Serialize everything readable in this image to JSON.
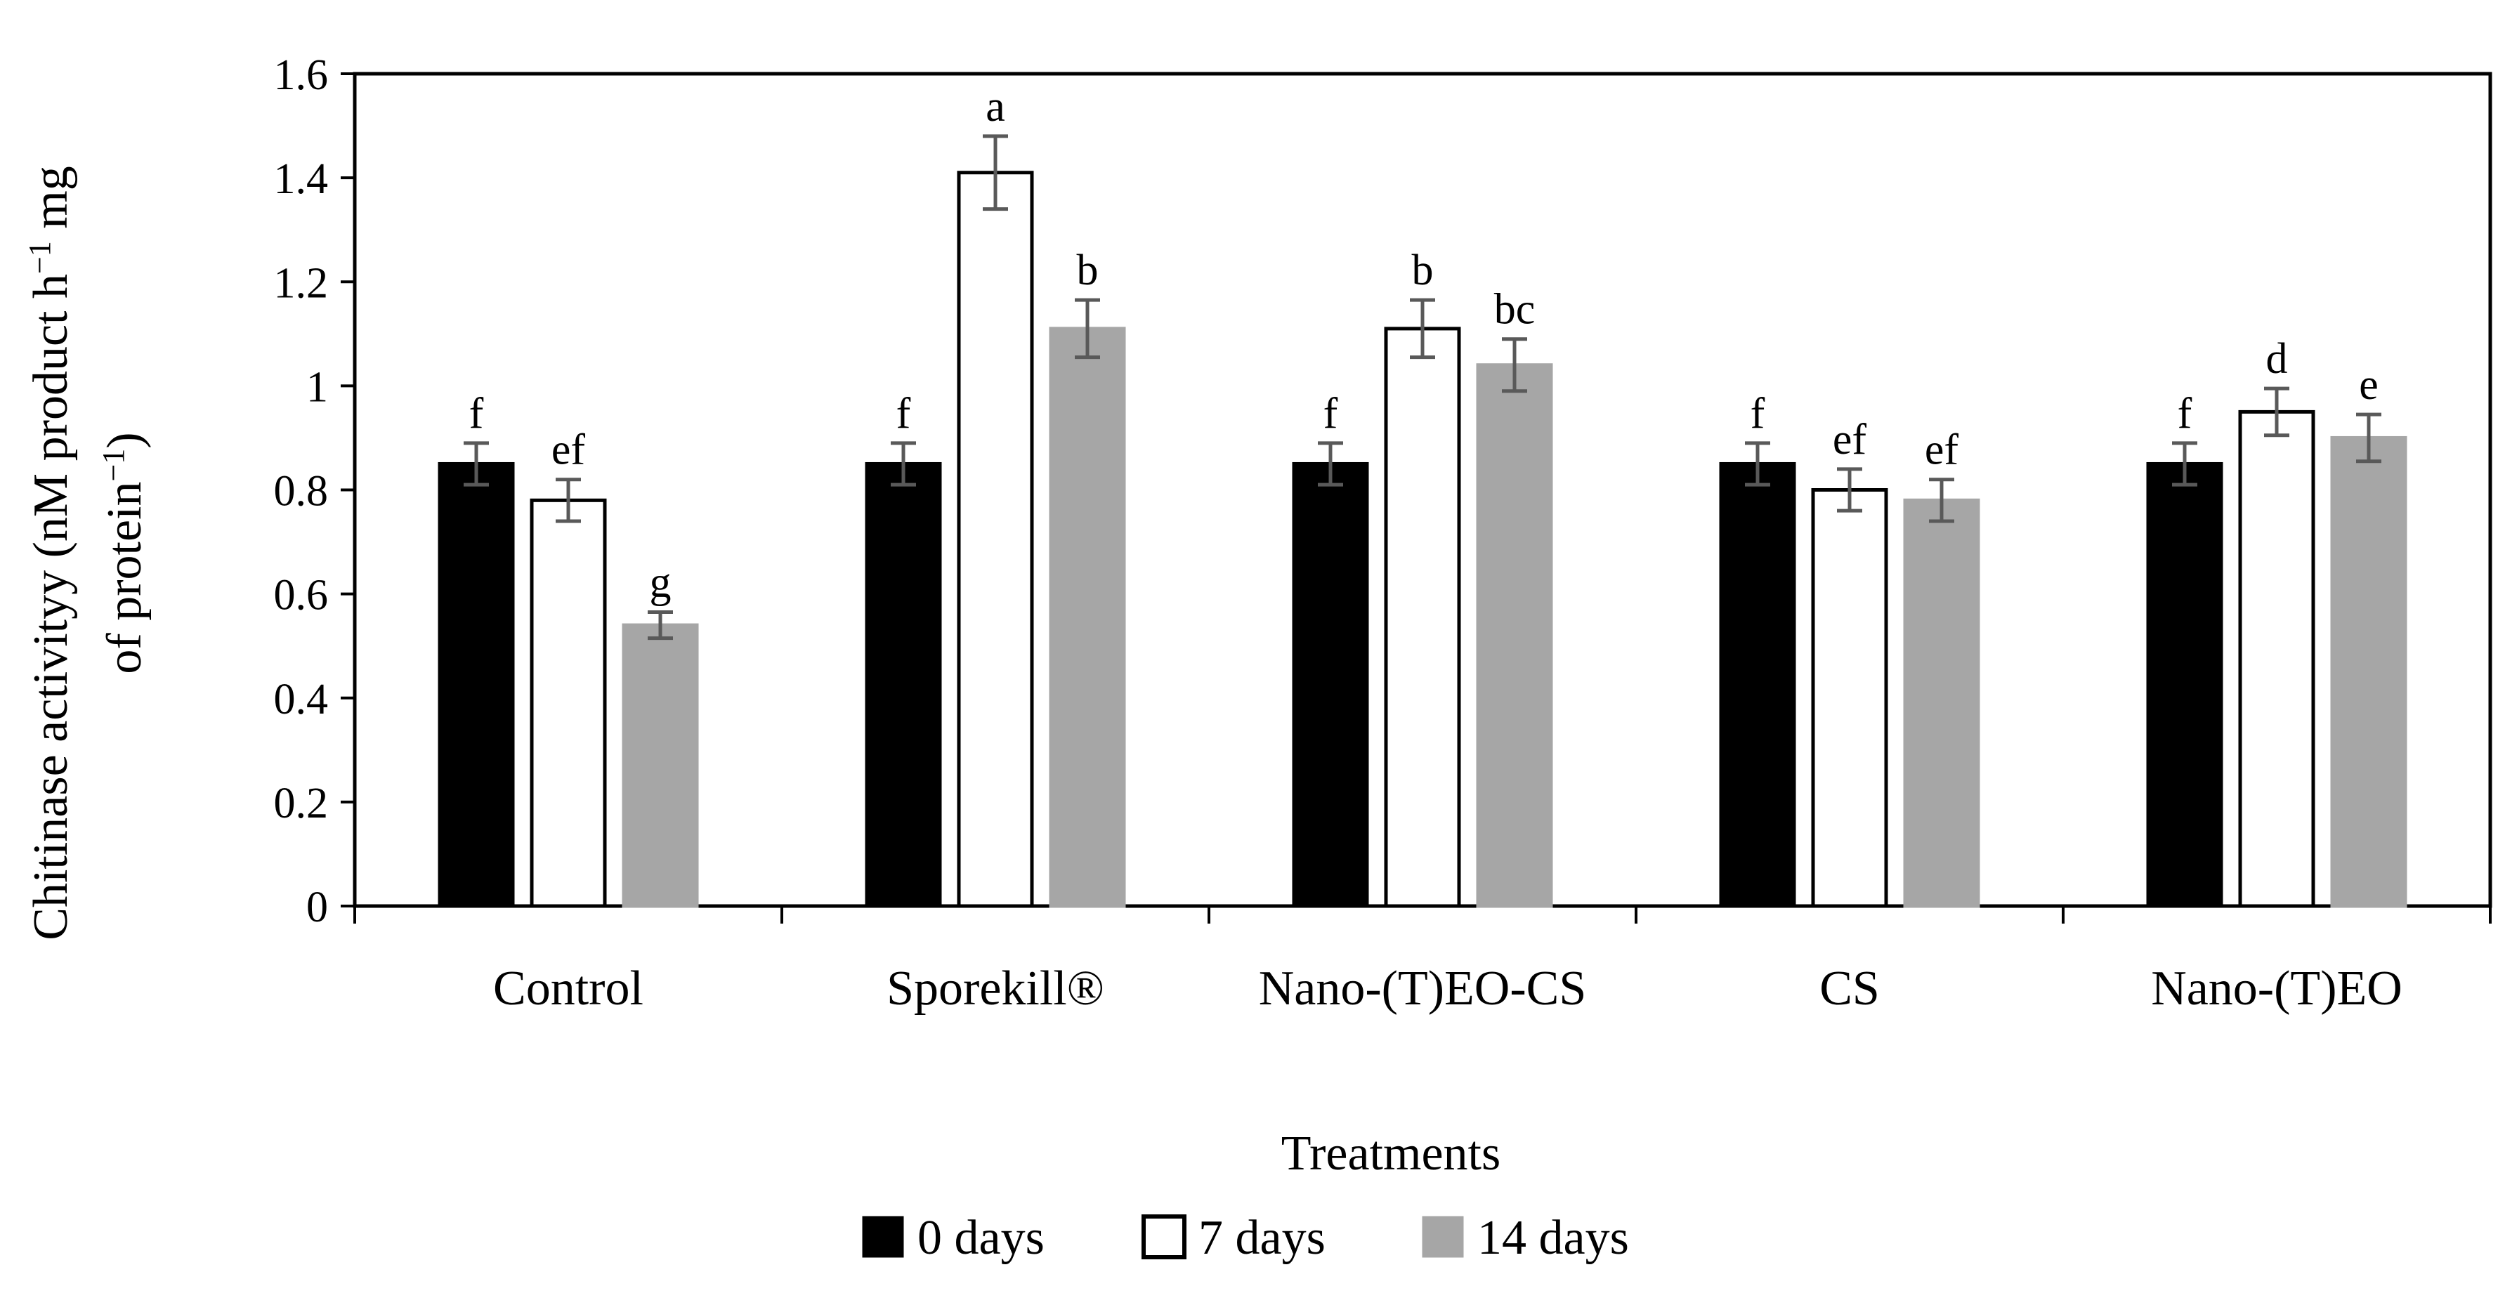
{
  "chart_data": {
    "type": "bar",
    "title": "",
    "xlabel": "Treatments",
    "ylabel_line1": "Chitinase activityy (nM product h",
    "ylabel_sup1": "−1",
    "ylabel_line1_end": " mg",
    "ylabel_line2": "of protein",
    "ylabel_sup2": "−1",
    "ylabel_line2_end": ")",
    "ylim": [
      0,
      1.6
    ],
    "yticks": [
      0,
      0.2,
      0.4,
      0.6,
      0.8,
      1,
      1.2,
      1.4,
      1.6
    ],
    "ytick_labels": [
      "0",
      "0.2",
      "0.4",
      "0.6",
      "0.8",
      "1",
      "1.2",
      "1.4",
      "1.6"
    ],
    "categories": [
      "Control",
      "Sporekill®",
      "Nano-(T)EO-CS",
      "CS",
      "Nano-(T)EO"
    ],
    "series": [
      {
        "name": "0 days",
        "legend_label": "0 days",
        "color": "#000000",
        "stroke": "#000000",
        "values": [
          0.85,
          0.85,
          0.85,
          0.85,
          0.85
        ],
        "errors": [
          0.04,
          0.04,
          0.04,
          0.04,
          0.04
        ],
        "letters": [
          "f",
          "f",
          "f",
          "f",
          "f"
        ]
      },
      {
        "name": "7 days",
        "legend_label": "7 days",
        "color": "#ffffff",
        "stroke": "#000000",
        "values": [
          0.78,
          1.41,
          1.11,
          0.8,
          0.95
        ],
        "errors": [
          0.04,
          0.07,
          0.055,
          0.04,
          0.045
        ],
        "letters": [
          "ef",
          "a",
          "b",
          "ef",
          "d"
        ]
      },
      {
        "name": "14 days",
        "legend_label": "14 days",
        "color": "#a6a6a6",
        "stroke": "#a6a6a6",
        "values": [
          0.54,
          1.11,
          1.04,
          0.78,
          0.9
        ],
        "errors": [
          0.025,
          0.055,
          0.05,
          0.04,
          0.045
        ],
        "letters": [
          "g",
          "b",
          "bc",
          "ef",
          "e"
        ]
      }
    ],
    "error_bar_color": "#595959",
    "grid": false,
    "legend_position": "bottom-center"
  }
}
